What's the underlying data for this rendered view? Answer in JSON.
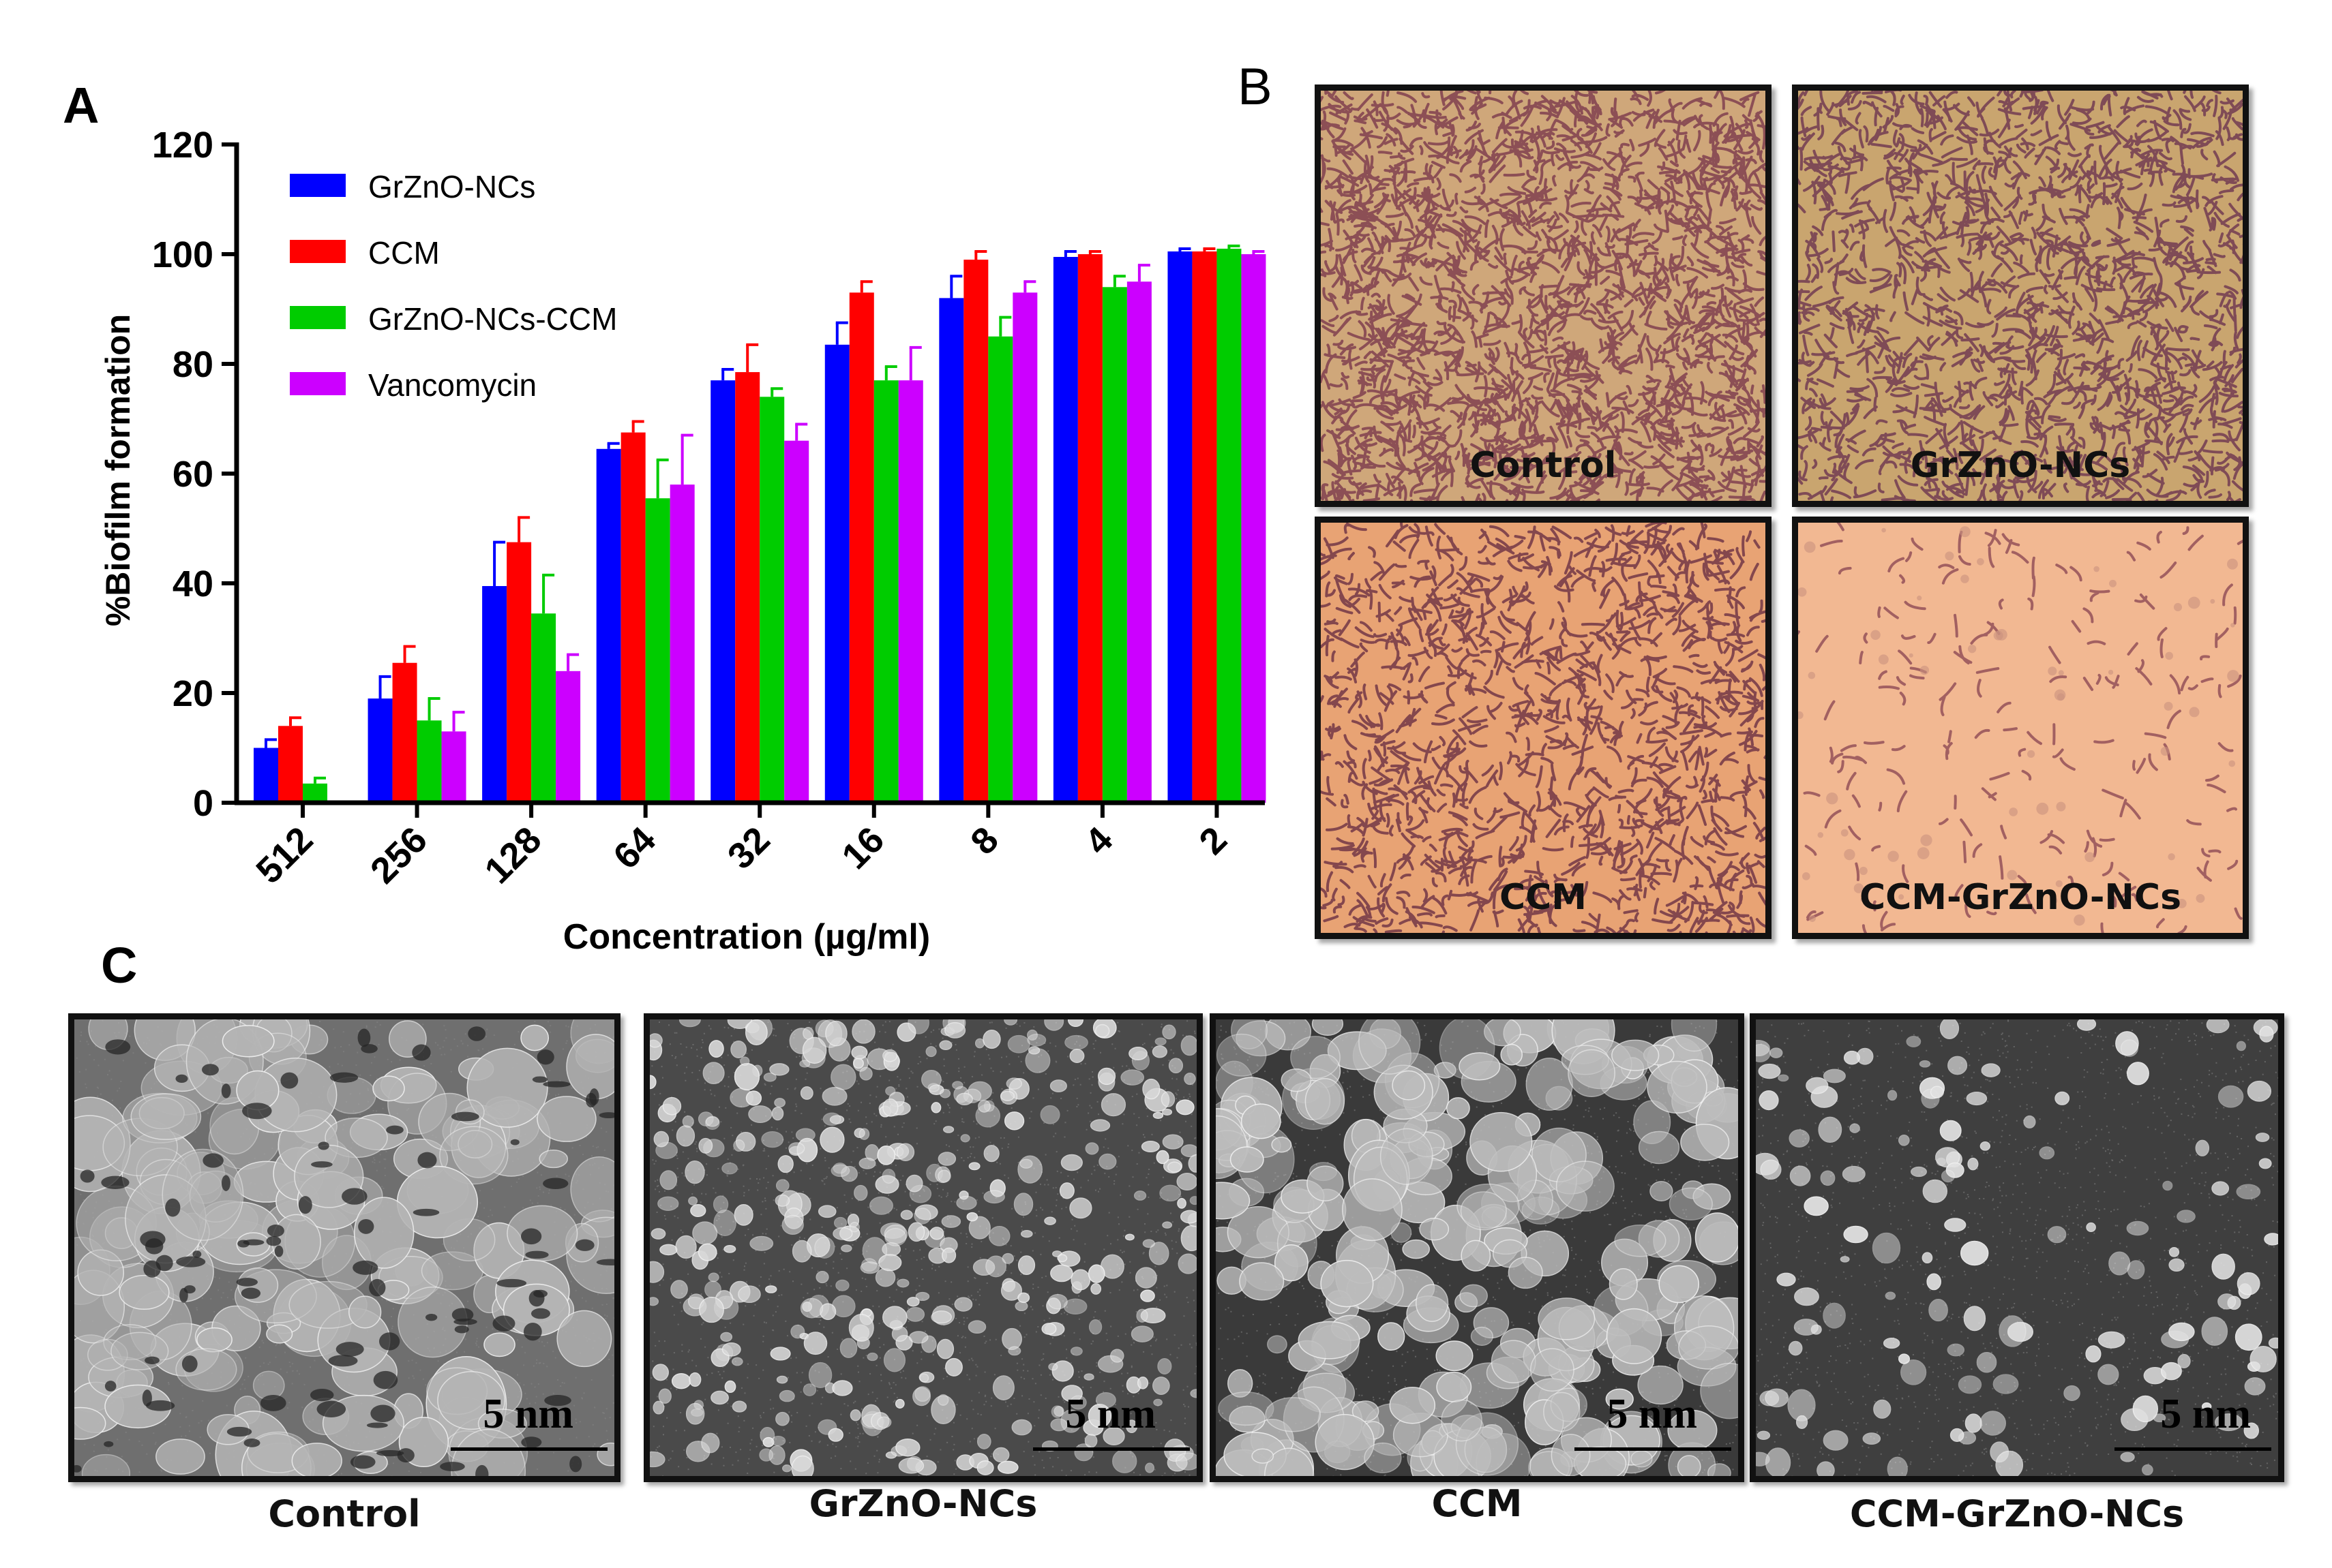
{
  "panels": {
    "a": "A",
    "b": "B",
    "c": "C"
  },
  "chart_data": {
    "type": "bar",
    "title": "",
    "xlabel": "Concentration (µg/ml)",
    "ylabel": "%Biofilm formation",
    "ylim": [
      0,
      120
    ],
    "yticks": [
      "0",
      "20",
      "40",
      "60",
      "80",
      "100",
      "120"
    ],
    "categories": [
      "512",
      "256",
      "128",
      "64",
      "32",
      "16",
      "8",
      "4",
      "2"
    ],
    "legend_position": "top-left",
    "series": [
      {
        "name": "GrZnO-NCs",
        "color": "#0000ff",
        "values": [
          10,
          19,
          39.5,
          64.5,
          77,
          83.5,
          92,
          99.5,
          100.5
        ],
        "errors": [
          1.5,
          4,
          8,
          1,
          2,
          4,
          4,
          1,
          0.5
        ]
      },
      {
        "name": "CCM",
        "color": "#ff0000",
        "values": [
          14,
          25.5,
          47.5,
          67.5,
          78.5,
          93,
          99,
          100,
          100.5
        ],
        "errors": [
          1.5,
          3,
          4.5,
          2,
          5,
          2,
          1.5,
          0.5,
          0.5
        ]
      },
      {
        "name": "GrZnO-NCs-CCM",
        "color": "#00cc00",
        "values": [
          3.5,
          15,
          34.5,
          55.5,
          74,
          77,
          85,
          94,
          101
        ],
        "errors": [
          1,
          4,
          7,
          7,
          1.5,
          2.5,
          3.5,
          2,
          0.5
        ]
      },
      {
        "name": "Vancomycin",
        "color": "#cc00ff",
        "values": [
          0,
          13,
          24,
          58,
          66,
          77,
          93,
          95,
          100
        ],
        "errors": [
          0,
          3.5,
          3,
          9,
          3,
          6,
          2,
          3,
          0.5
        ]
      }
    ]
  },
  "micrographs_b": [
    {
      "label": "Control",
      "bg": "#cfa77a",
      "dense": "#7a3a4c",
      "density": 0.9
    },
    {
      "label": "GrZnO-NCs",
      "bg": "#c9a56f",
      "dense": "#6d3550",
      "density": 0.7
    },
    {
      "label": "CCM",
      "bg": "#e8a374",
      "dense": "#6a2f43",
      "density": 0.55
    },
    {
      "label": "CCM-GrZnO-NCs",
      "bg": "#f2b892",
      "dense": "#8d4a55",
      "density": 0.08
    }
  ],
  "sem_c": [
    {
      "caption": "Control",
      "scale": "5 nm"
    },
    {
      "caption": "GrZnO-NCs",
      "scale": "5 nm"
    },
    {
      "caption": "CCM",
      "scale": "5 nm"
    },
    {
      "caption": "CCM-GrZnO-NCs",
      "scale": "5 nm"
    }
  ]
}
